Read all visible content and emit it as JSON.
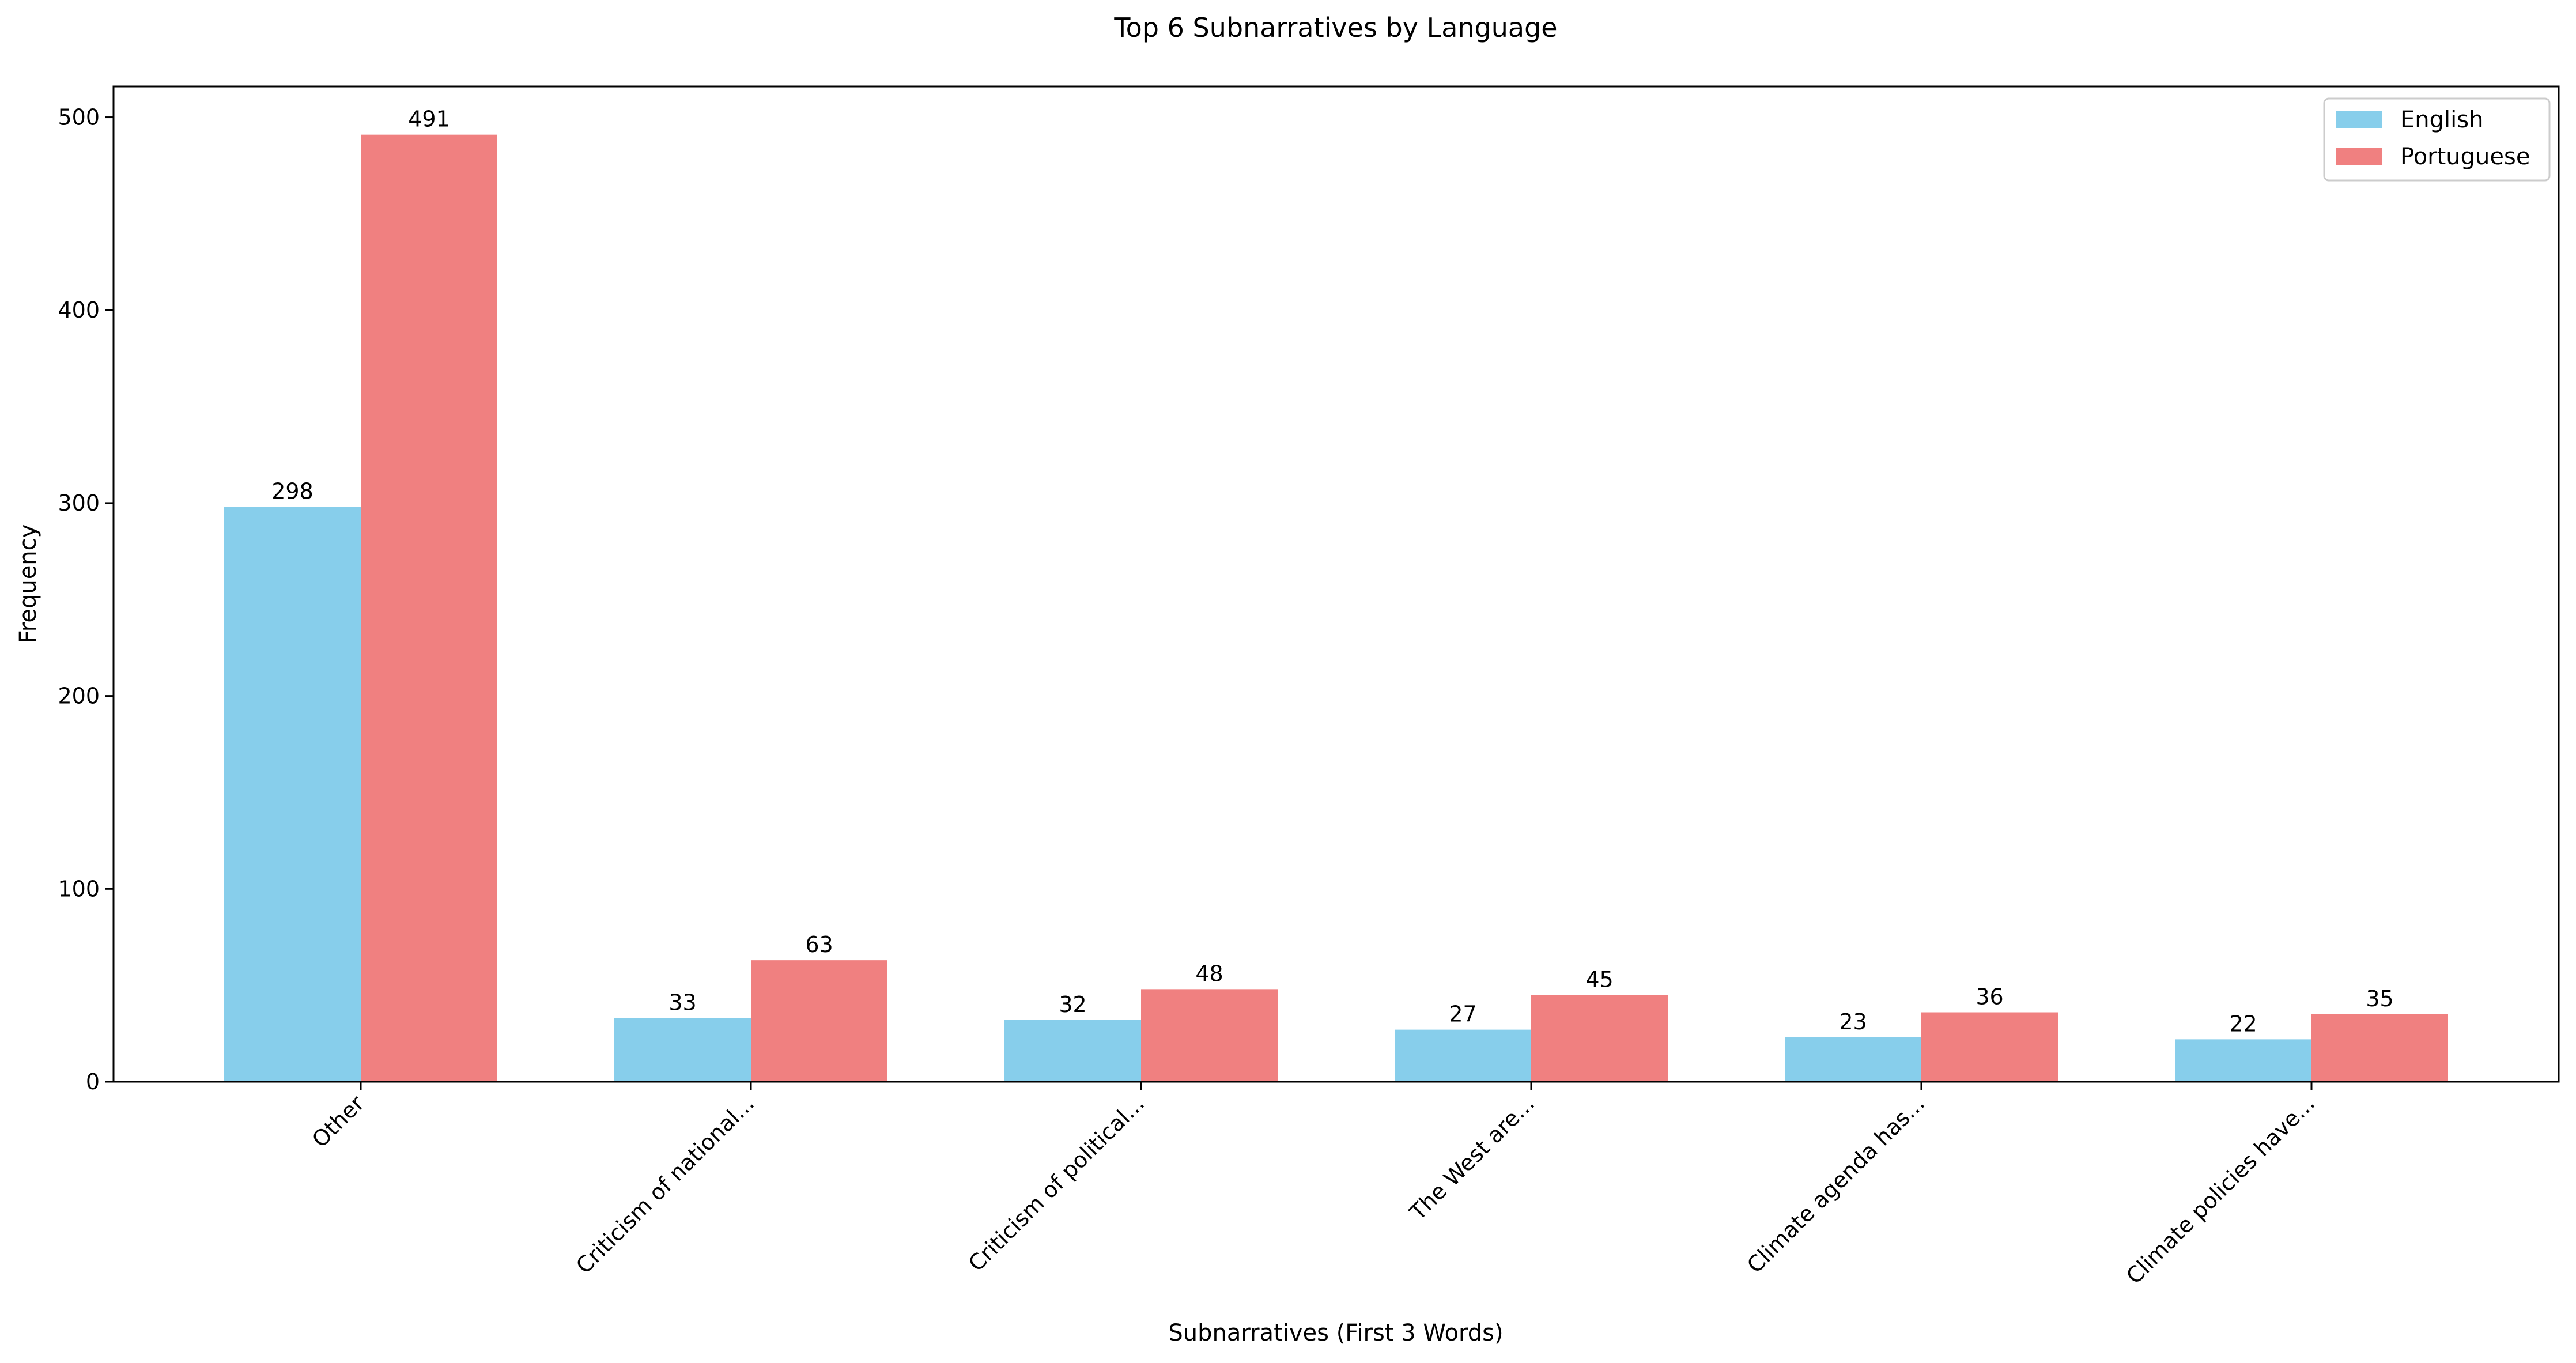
{
  "chart_data": {
    "type": "bar",
    "title": "Top 6 Subnarratives by Language",
    "xlabel": "Subnarratives (First 3 Words)",
    "ylabel": "Frequency",
    "categories": [
      "Other",
      "Criticism of national...",
      "Criticism of political...",
      "The West are...",
      "Climate agenda has...",
      "Climate policies have..."
    ],
    "series": [
      {
        "name": "English",
        "color": "#87CEEB",
        "values": [
          298,
          33,
          32,
          27,
          23,
          22
        ]
      },
      {
        "name": "Portuguese",
        "color": "#F08080",
        "values": [
          491,
          63,
          48,
          45,
          36,
          35
        ]
      }
    ],
    "ylim": [
      0,
      516
    ],
    "yticks": [
      0,
      100,
      200,
      300,
      400,
      500
    ],
    "grid": false,
    "legend_position": "top-right"
  }
}
